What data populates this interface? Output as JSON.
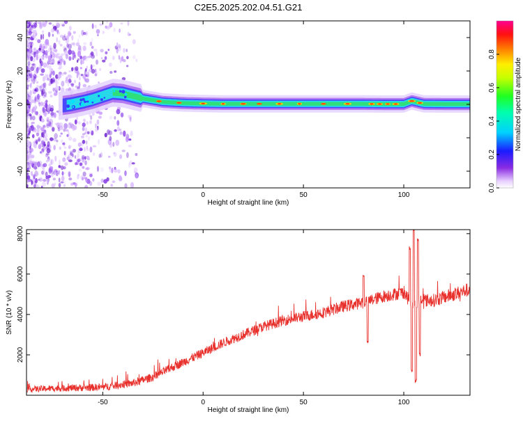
{
  "title": "C2E5.2025.202.04.51.G21",
  "colors": {
    "snr_line": "#e8302c",
    "axis": "#000000",
    "band_core": "#ff3a10",
    "band_green": "#2fe07a",
    "band_cyan": "#26d8e8",
    "band_purple": "#8a2be2"
  },
  "chart_data": [
    {
      "type": "heatmap",
      "title": "",
      "xlabel": "Height of straight line (km)",
      "ylabel": "Frequency (Hz)",
      "xlim": [
        -88,
        133
      ],
      "ylim": [
        -50,
        50
      ],
      "xticks": [
        "-50",
        "0",
        "50",
        "100"
      ],
      "xtick_values": [
        -50,
        0,
        50,
        100
      ],
      "yticks": [
        "-40",
        "-20",
        "0",
        "20",
        "40"
      ],
      "ytick_values": [
        -40,
        -20,
        0,
        20,
        40
      ],
      "colorbar": {
        "label": "Normalized spectral amplitude",
        "ticks": [
          "0.0",
          "0.2",
          "0.4",
          "0.6",
          "0.8"
        ],
        "tick_values": [
          0.0,
          0.2,
          0.4,
          0.6,
          0.8
        ],
        "range": [
          0,
          1
        ]
      },
      "peak_frequency_track": {
        "x": [
          -72,
          -66,
          -60,
          -55,
          -50,
          -45,
          -40,
          -35,
          -30,
          -25,
          -20,
          -10,
          0,
          10,
          20,
          40,
          60,
          80,
          90,
          100,
          104,
          110,
          120,
          133
        ],
        "y": [
          -1,
          0,
          1.5,
          3,
          5,
          7,
          6.5,
          5,
          3.5,
          2.5,
          1.5,
          0.8,
          0.5,
          0.3,
          0.3,
          0.3,
          0.3,
          0.3,
          0.2,
          0.2,
          2,
          0.3,
          0.2,
          0.2
        ]
      }
    },
    {
      "type": "line",
      "title": "",
      "xlabel": "Height of straight line (km)",
      "ylabel": "SNR (10 * v/v)",
      "xlim": [
        -88,
        133
      ],
      "ylim": [
        0,
        8200
      ],
      "xticks": [
        "-50",
        "0",
        "50",
        "100"
      ],
      "xtick_values": [
        -50,
        0,
        50,
        100
      ],
      "yticks": [
        "2000",
        "4000",
        "6000",
        "8000"
      ],
      "ytick_values": [
        2000,
        4000,
        6000,
        8000
      ],
      "trend": {
        "x": [
          -88,
          -70,
          -50,
          -35,
          -25,
          -15,
          0,
          10,
          20,
          30,
          40,
          50,
          60,
          70,
          80,
          90,
          100,
          104,
          108,
          115,
          125,
          133
        ],
        "y": [
          300,
          350,
          400,
          600,
          900,
          1400,
          2100,
          2600,
          3000,
          3400,
          3700,
          3900,
          4100,
          4400,
          4600,
          4900,
          5100,
          4500,
          4700,
          4700,
          5000,
          5250
        ]
      },
      "noise_amplitude": 250,
      "spikes": [
        {
          "x": 80,
          "y": 5900
        },
        {
          "x": 82,
          "y": 2700
        },
        {
          "x": 103,
          "y": 7300
        },
        {
          "x": 104,
          "y": 1200
        },
        {
          "x": 105,
          "y": 8200
        },
        {
          "x": 106,
          "y": 700
        },
        {
          "x": 107,
          "y": 7700
        },
        {
          "x": 108,
          "y": 2000
        }
      ]
    }
  ]
}
